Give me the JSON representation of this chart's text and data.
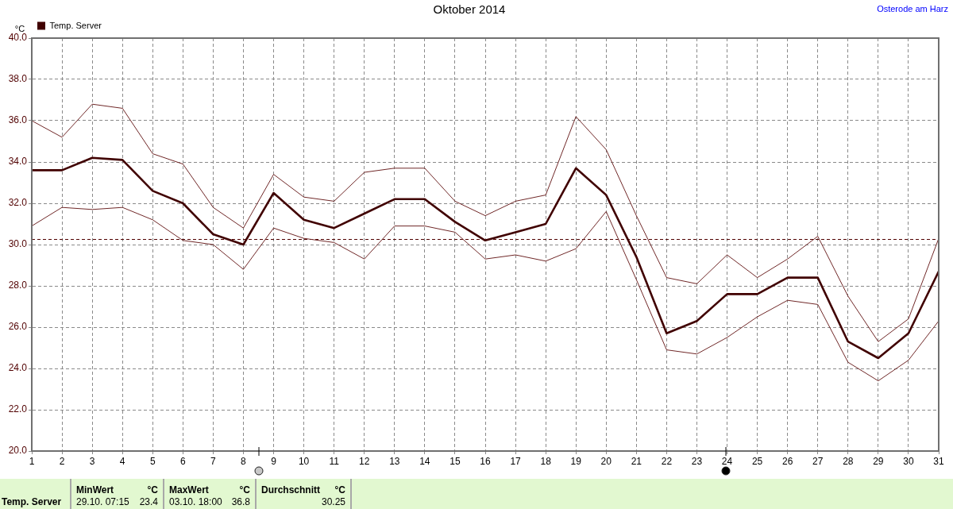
{
  "chart_data": {
    "type": "line",
    "title": "Oktober 2014",
    "subtitle": "Osterode am Harz",
    "ylabel": "°C",
    "x": [
      1,
      2,
      3,
      4,
      5,
      6,
      7,
      8,
      9,
      10,
      11,
      12,
      13,
      14,
      15,
      16,
      17,
      18,
      19,
      20,
      21,
      22,
      23,
      24,
      25,
      26,
      27,
      28,
      29,
      30,
      31
    ],
    "xlim": [
      1,
      31
    ],
    "xticks": [
      1,
      2,
      3,
      4,
      5,
      6,
      7,
      8,
      9,
      10,
      11,
      12,
      13,
      14,
      15,
      16,
      17,
      18,
      19,
      20,
      21,
      22,
      23,
      24,
      25,
      26,
      27,
      28,
      29,
      30,
      31
    ],
    "ylim": [
      20,
      40
    ],
    "yticks": [
      {
        "value": 20,
        "label": "20.0"
      },
      {
        "value": 22,
        "label": "22.0"
      },
      {
        "value": 24,
        "label": "24.0"
      },
      {
        "value": 26,
        "label": "26.0"
      },
      {
        "value": 28,
        "label": "28.0"
      },
      {
        "value": 30,
        "label": "30.0"
      },
      {
        "value": 32,
        "label": "32.0"
      },
      {
        "value": 34,
        "label": "34.0"
      },
      {
        "value": 36,
        "label": "36.0"
      },
      {
        "value": 38,
        "label": "38.0"
      },
      {
        "value": 40,
        "label": "40.0"
      }
    ],
    "series": [
      {
        "name": "Temp. Server",
        "color": "#400000",
        "values": [
          33.6,
          33.6,
          34.2,
          34.1,
          32.6,
          32.0,
          30.5,
          30.0,
          32.5,
          31.2,
          30.8,
          31.5,
          32.2,
          32.2,
          31.1,
          30.2,
          30.6,
          31.0,
          33.7,
          32.4,
          29.4,
          25.7,
          26.3,
          27.6,
          27.6,
          28.4,
          28.4,
          25.3,
          24.5,
          25.7,
          28.7
        ]
      },
      {
        "color": "#702828",
        "values": [
          36.0,
          35.2,
          36.8,
          36.6,
          34.4,
          33.9,
          31.8,
          30.8,
          33.4,
          32.3,
          32.1,
          33.5,
          33.7,
          33.7,
          32.1,
          31.4,
          32.1,
          32.4,
          36.2,
          34.6,
          31.4,
          28.4,
          28.1,
          29.5,
          28.4,
          29.3,
          30.4,
          27.5,
          25.3,
          26.4,
          30.3
        ]
      },
      {
        "color": "#702828",
        "values": [
          30.9,
          31.8,
          31.7,
          31.8,
          31.2,
          30.2,
          30.0,
          28.8,
          30.8,
          30.3,
          30.1,
          29.3,
          30.9,
          30.9,
          30.6,
          29.3,
          29.5,
          29.2,
          29.8,
          31.6,
          28.3,
          24.9,
          24.7,
          25.5,
          26.5,
          27.3,
          27.1,
          24.3,
          23.4,
          24.4,
          26.3
        ]
      }
    ],
    "ref_lines": [
      {
        "axis": "y",
        "value": 30.25,
        "color": "#500000",
        "line_style": "dashed"
      }
    ],
    "annotations": [
      "Temp. Server",
      "MinWert",
      "°C",
      "29.10. 07:15",
      "23.4",
      "MaxWert",
      "°C",
      "03.10. 18:00",
      "36.8",
      "Durchschnitt",
      "°C",
      "30.25"
    ],
    "grid": true,
    "legend": "top left",
    "marker": "none",
    "line_style": "solid"
  }
}
